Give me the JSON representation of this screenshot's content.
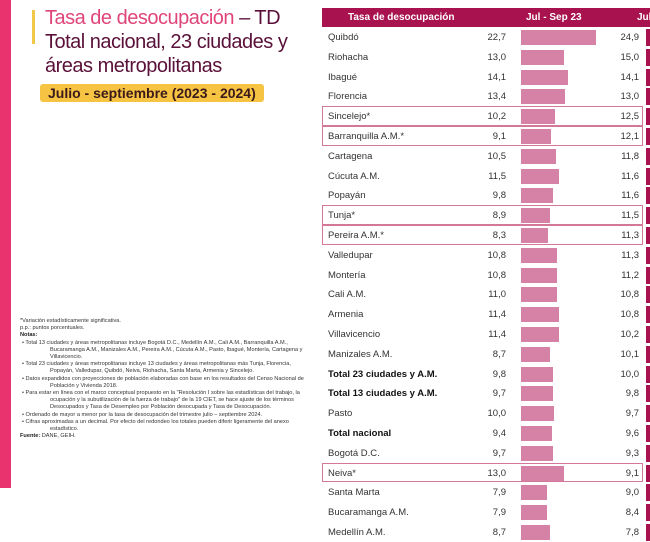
{
  "header": {
    "title_pink": "Tasa de desocupación",
    "title_dark": " – TD",
    "subtitle": "Total nacional, 23 ciudades y áreas metropolitanas",
    "period": "Julio - septiembre (2023 - 2024)"
  },
  "notes": {
    "l1": "*Variación estadísticamente significativa.",
    "l2": "p.p.: puntos porcentuales.",
    "heading": "Notas:",
    "items": [
      "• Total 13 ciudades y áreas metropolitanas incluye Bogotá D.C., Medellín A.M., Cali A.M., Barranquilla A.M., Bucaramanga A.M., Manizales A.M., Pereira A.M., Cúcuta A.M., Pasto, Ibagué, Montería, Cartagena y Villavicencio.",
      "• Total 23 ciudades y áreas metropolitanas incluye 13 ciudades y áreas metropolitanas más Tunja, Florencia, Popayán, Valledupar, Quibdó, Neiva, Riohacha, Santa Marta, Armenia y Sincelejo.",
      "• Datos expandidos con proyecciones de población elaboradas con base en los resultados del Censo Nacional de Población y Vivienda 2018.",
      "• Para estar en línea con el marco conceptual propuesto en la \"Resolución I sobre las estadísticas del trabajo, la ocupación y la subutilización de la fuerza de trabajo\" de la 19 CIET, se hace ajuste de los términos Desocupados y Tasa de Desempleo por Población desocupada y Tasa de Desocupación.",
      "• Ordenado de mayor a menor por la tasa de desocupación del trimestre julio – septiembre 2024.",
      "• Cifras aproximadas a un decimal. Por efecto del redondeo los totales pueden diferir ligeramente del anexo estadístico."
    ],
    "source_label": "Fuente:",
    "source": " DANE, GEIH."
  },
  "chart_data": {
    "type": "table",
    "columns": [
      "Tasa de desocupación",
      "Jul - Sep 23",
      "Jul -"
    ],
    "colors": {
      "bar_2023": "#d682a6",
      "bar_2024": "#a8124f",
      "highlight": "#d4789a"
    },
    "rows": [
      {
        "name": "Quibdó",
        "v2023": "22,7",
        "v2024": "24,9",
        "n": 22.7
      },
      {
        "name": "Riohacha",
        "v2023": "13,0",
        "v2024": "15,0",
        "n": 13.0
      },
      {
        "name": "Ibagué",
        "v2023": "14,1",
        "v2024": "14,1",
        "n": 14.1
      },
      {
        "name": "Florencia",
        "v2023": "13,4",
        "v2024": "13,0",
        "n": 13.4
      },
      {
        "name": "Sincelejo*",
        "v2023": "10,2",
        "v2024": "12,5",
        "n": 10.2,
        "hl": true
      },
      {
        "name": "Barranquilla A.M.*",
        "v2023": "9,1",
        "v2024": "12,1",
        "n": 9.1,
        "hl": true
      },
      {
        "name": "Cartagena",
        "v2023": "10,5",
        "v2024": "11,8",
        "n": 10.5
      },
      {
        "name": "Cúcuta A.M.",
        "v2023": "11,5",
        "v2024": "11,6",
        "n": 11.5
      },
      {
        "name": "Popayán",
        "v2023": "9,8",
        "v2024": "11,6",
        "n": 9.8
      },
      {
        "name": "Tunja*",
        "v2023": "8,9",
        "v2024": "11,5",
        "n": 8.9,
        "hl": true
      },
      {
        "name": "Pereira A.M.*",
        "v2023": "8,3",
        "v2024": "11,3",
        "n": 8.3,
        "hl": true
      },
      {
        "name": "Valledupar",
        "v2023": "10,8",
        "v2024": "11,3",
        "n": 10.8
      },
      {
        "name": "Montería",
        "v2023": "10,8",
        "v2024": "11,2",
        "n": 10.8
      },
      {
        "name": "Cali A.M.",
        "v2023": "11,0",
        "v2024": "10,8",
        "n": 11.0
      },
      {
        "name": "Armenia",
        "v2023": "11,4",
        "v2024": "10,8",
        "n": 11.4
      },
      {
        "name": "Villavicencio",
        "v2023": "11,4",
        "v2024": "10,2",
        "n": 11.4
      },
      {
        "name": "Manizales A.M.",
        "v2023": "8,7",
        "v2024": "10,1",
        "n": 8.7
      },
      {
        "name": "Total 23 ciudades y A.M.",
        "v2023": "9,8",
        "v2024": "10,0",
        "n": 9.8,
        "bold": true
      },
      {
        "name": "Total 13 ciudades y A.M.",
        "v2023": "9,7",
        "v2024": "9,8",
        "n": 9.7,
        "bold": true
      },
      {
        "name": "Pasto",
        "v2023": "10,0",
        "v2024": "9,7",
        "n": 10.0
      },
      {
        "name": "Total nacional",
        "v2023": "9,4",
        "v2024": "9,6",
        "n": 9.4,
        "bold": true
      },
      {
        "name": "Bogotá D.C.",
        "v2023": "9,7",
        "v2024": "9,3",
        "n": 9.7
      },
      {
        "name": "Neiva*",
        "v2023": "13,0",
        "v2024": "9,1",
        "n": 13.0,
        "hl": true
      },
      {
        "name": "Santa Marta",
        "v2023": "7,9",
        "v2024": "9,0",
        "n": 7.9
      },
      {
        "name": "Bucaramanga A.M.",
        "v2023": "7,9",
        "v2024": "8,4",
        "n": 7.9
      },
      {
        "name": "Medellín A.M.",
        "v2023": "8,7",
        "v2024": "7,8",
        "n": 8.7
      }
    ]
  }
}
